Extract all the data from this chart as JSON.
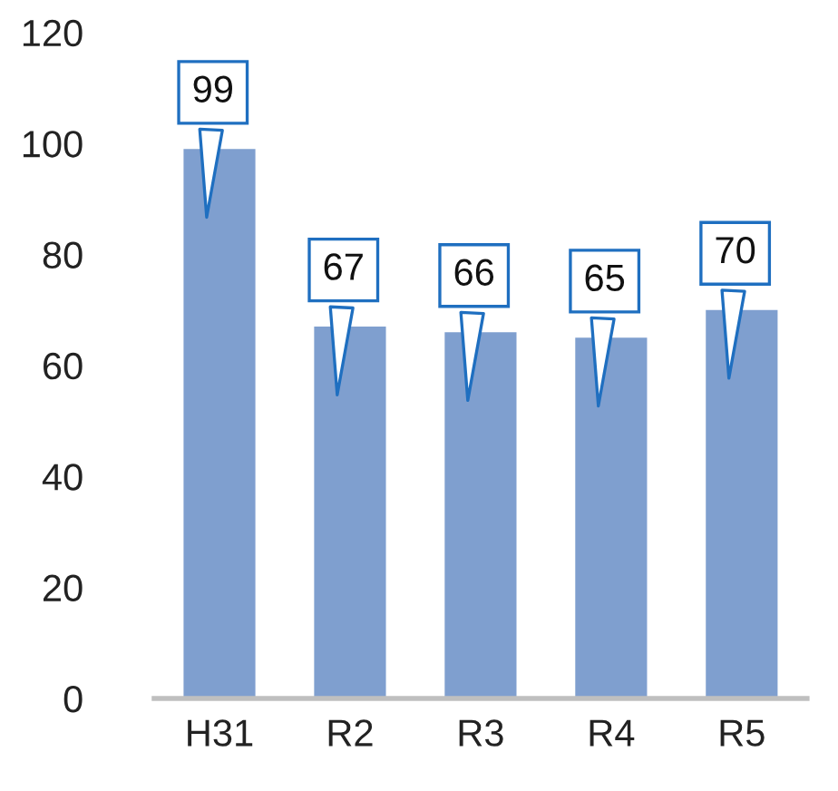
{
  "chart_data": {
    "type": "bar",
    "categories": [
      "H31",
      "R2",
      "R3",
      "R4",
      "R5"
    ],
    "values": [
      99,
      67,
      66,
      65,
      70
    ],
    "color": "#7f9fcf",
    "ylim": [
      0,
      120
    ],
    "yticks": [
      0,
      20,
      40,
      60,
      80,
      100,
      120
    ],
    "data_labels": true,
    "grid": false,
    "legend": false
  }
}
